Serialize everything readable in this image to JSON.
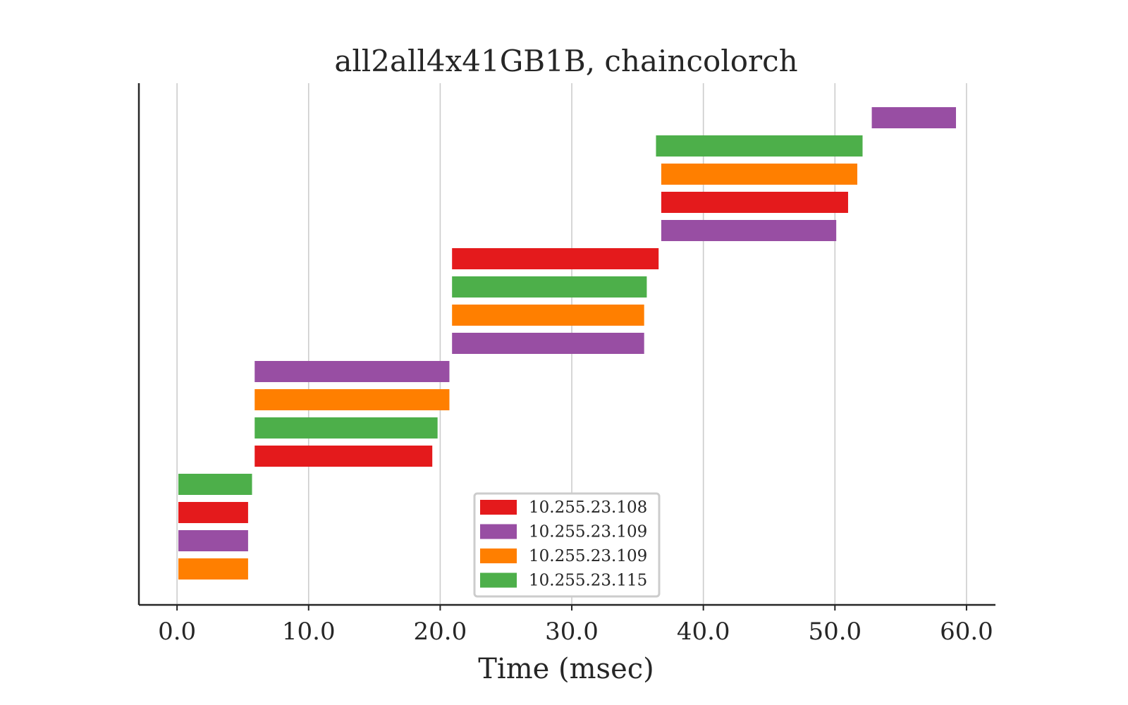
{
  "chart_data": {
    "type": "bar",
    "orientation": "horizontal",
    "title": "all2all4x41GB1B, chaincolorch",
    "xlabel": "Time (msec)",
    "ylabel": "",
    "xlim": [
      -2.9,
      62.2
    ],
    "xticks": [
      0.0,
      10.0,
      20.0,
      30.0,
      40.0,
      50.0,
      60.0
    ],
    "xtick_labels": [
      "0.0",
      "10.0",
      "20.0",
      "30.0",
      "40.0",
      "50.0",
      "60.0"
    ],
    "grid": "vertical",
    "legend_position": "bottom-center",
    "series": [
      {
        "name": "10.255.23.108",
        "color": "#e41a1c"
      },
      {
        "name": "10.255.23.109",
        "color": "#984ea3"
      },
      {
        "name": "10.255.23.109",
        "color": "#ff7f00"
      },
      {
        "name": "10.255.23.115",
        "color": "#4daf4a"
      }
    ],
    "bars": [
      {
        "series": 2,
        "start": 0.1,
        "end": 5.4
      },
      {
        "series": 1,
        "start": 0.1,
        "end": 5.4
      },
      {
        "series": 0,
        "start": 0.1,
        "end": 5.4
      },
      {
        "series": 3,
        "start": 0.1,
        "end": 5.7
      },
      {
        "series": 0,
        "start": 5.9,
        "end": 19.4
      },
      {
        "series": 3,
        "start": 5.9,
        "end": 19.8
      },
      {
        "series": 2,
        "start": 5.9,
        "end": 20.7
      },
      {
        "series": 1,
        "start": 5.9,
        "end": 20.7
      },
      {
        "series": 1,
        "start": 20.9,
        "end": 35.5
      },
      {
        "series": 2,
        "start": 20.9,
        "end": 35.5
      },
      {
        "series": 3,
        "start": 20.9,
        "end": 35.7
      },
      {
        "series": 0,
        "start": 20.9,
        "end": 36.6
      },
      {
        "series": 1,
        "start": 36.8,
        "end": 50.1
      },
      {
        "series": 0,
        "start": 36.8,
        "end": 51.0
      },
      {
        "series": 2,
        "start": 36.8,
        "end": 51.7
      },
      {
        "series": 3,
        "start": 36.4,
        "end": 52.1
      },
      {
        "series": 1,
        "start": 52.8,
        "end": 59.2
      }
    ]
  }
}
